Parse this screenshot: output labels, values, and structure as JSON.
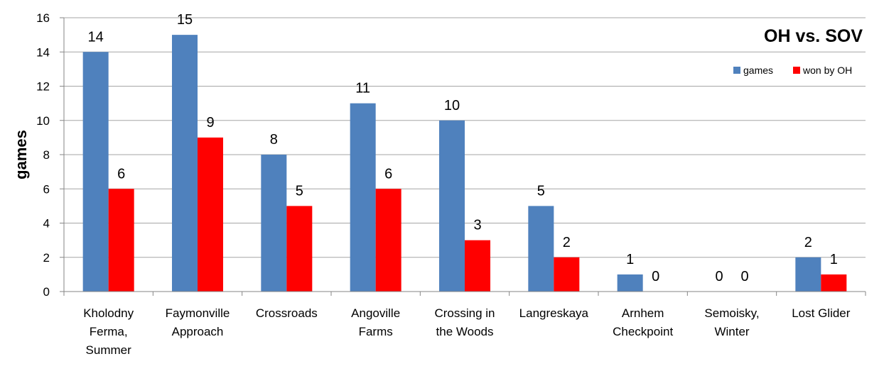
{
  "chart_data": {
    "type": "bar",
    "title": "OH vs. SOV",
    "xlabel": "",
    "ylabel": "games",
    "ylim": [
      0,
      16
    ],
    "yticks": [
      0,
      2,
      4,
      6,
      8,
      10,
      12,
      14,
      16
    ],
    "grid": true,
    "legend_position": "top-right",
    "categories": [
      "Kholodny Ferma, Summer",
      "Faymonville Approach",
      "Crossroads",
      "Angoville Farms",
      "Crossing in the Woods",
      "Langreskaya",
      "Arnhem Checkpoint",
      "Semoisky, Winter",
      "Lost Glider"
    ],
    "category_lines": [
      [
        "Kholodny",
        "Ferma,",
        "Summer"
      ],
      [
        "Faymonville",
        "Approach"
      ],
      [
        "Crossroads"
      ],
      [
        "Angoville",
        "Farms"
      ],
      [
        "Crossing in",
        "the Woods"
      ],
      [
        "Langreskaya"
      ],
      [
        "Arnhem",
        "Checkpoint"
      ],
      [
        "Semoisky,",
        "Winter"
      ],
      [
        "Lost Glider"
      ]
    ],
    "series": [
      {
        "name": "games",
        "color": "#4f81bd",
        "values": [
          14,
          15,
          8,
          11,
          10,
          5,
          1,
          0,
          2
        ]
      },
      {
        "name": "won by OH",
        "color": "#ff0000",
        "values": [
          6,
          9,
          5,
          6,
          3,
          2,
          0,
          0,
          1
        ]
      }
    ]
  }
}
